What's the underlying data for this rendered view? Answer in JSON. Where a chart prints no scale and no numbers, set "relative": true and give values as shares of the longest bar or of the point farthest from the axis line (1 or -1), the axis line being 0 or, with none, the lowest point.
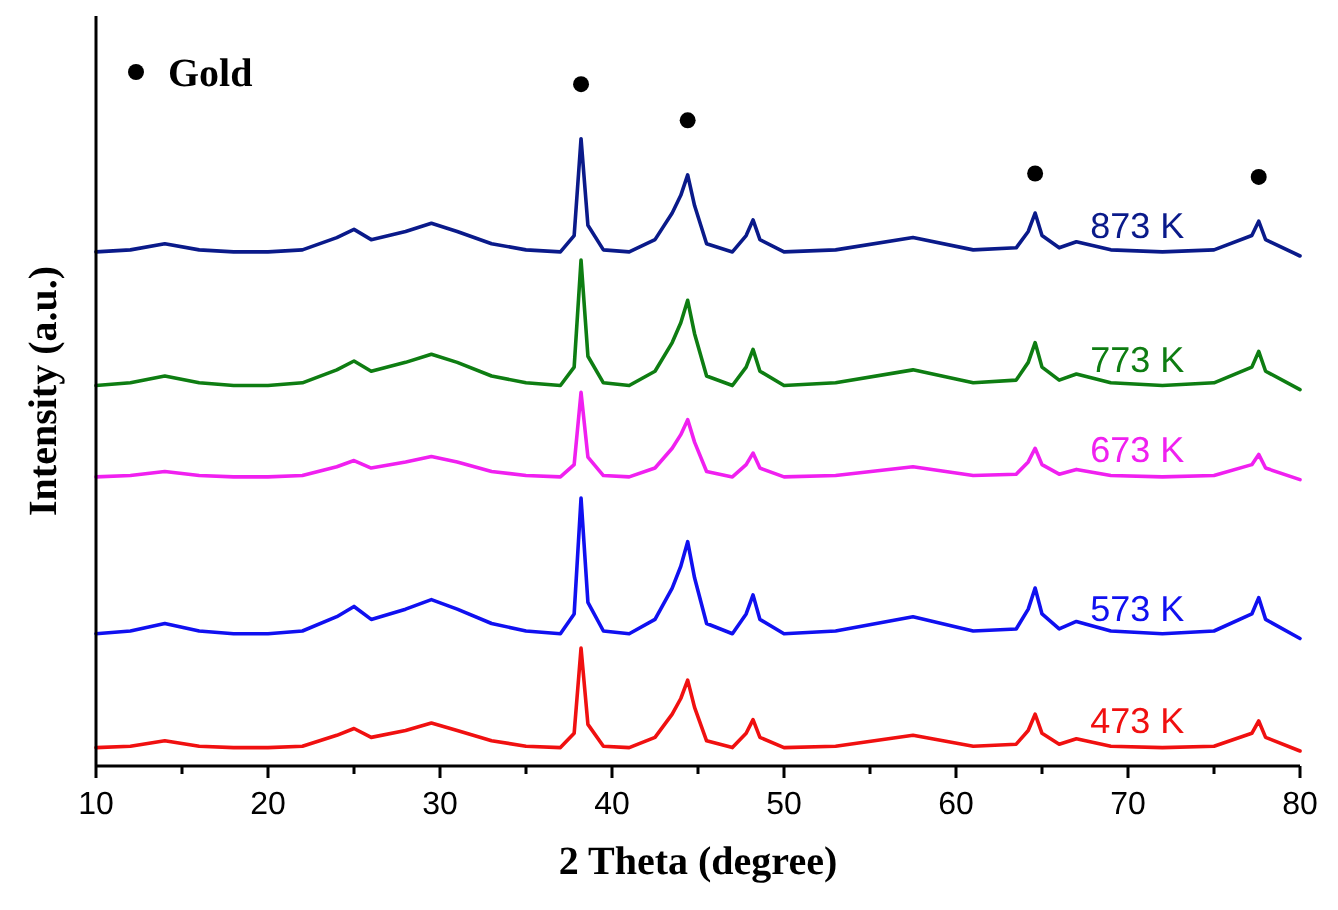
{
  "chart_data": {
    "type": "line",
    "relative": true,
    "xlabel": "2 Theta (degree)",
    "ylabel": "Intensity (a.u.)",
    "xlim": [
      10,
      80
    ],
    "xticks": [
      10,
      {
        "value": 15,
        "label": null
      },
      20,
      {
        "value": 25,
        "label": null
      },
      30,
      {
        "value": 35,
        "label": null
      },
      40,
      {
        "value": 45,
        "label": null
      },
      50,
      {
        "value": 55,
        "label": null
      },
      60,
      {
        "value": 65,
        "label": null
      },
      70,
      {
        "value": 75,
        "label": null
      },
      80
    ],
    "x": [
      10,
      12,
      14,
      16,
      18,
      20,
      22,
      24,
      25,
      26,
      28,
      29.5,
      31,
      33,
      35,
      37,
      37.8,
      38.2,
      38.6,
      39.5,
      41,
      42.5,
      43.5,
      44.0,
      44.4,
      44.8,
      45.5,
      47,
      47.8,
      48.2,
      48.6,
      50,
      53,
      57.5,
      61,
      63.5,
      64.2,
      64.6,
      65,
      66,
      67,
      69,
      72,
      75,
      77.2,
      77.6,
      78,
      80
    ],
    "grid": false,
    "legend": "top left",
    "series": [
      {
        "name": "873 K",
        "color": "#0a1a8a",
        "values": [
          0.754,
          0.757,
          0.766,
          0.757,
          0.754,
          0.754,
          0.757,
          0.775,
          0.787,
          0.772,
          0.784,
          0.796,
          0.784,
          0.766,
          0.757,
          0.754,
          0.778,
          0.92,
          0.793,
          0.757,
          0.754,
          0.772,
          0.811,
          0.837,
          0.867,
          0.822,
          0.766,
          0.754,
          0.778,
          0.801,
          0.772,
          0.754,
          0.757,
          0.775,
          0.757,
          0.76,
          0.784,
          0.811,
          0.778,
          0.76,
          0.769,
          0.757,
          0.754,
          0.757,
          0.778,
          0.799,
          0.772,
          0.748
        ]
      },
      {
        "name": "773 K",
        "color": "#0e7d12",
        "values": [
          0.558,
          0.562,
          0.572,
          0.562,
          0.558,
          0.558,
          0.562,
          0.581,
          0.594,
          0.579,
          0.592,
          0.604,
          0.592,
          0.572,
          0.562,
          0.558,
          0.585,
          0.742,
          0.601,
          0.562,
          0.558,
          0.579,
          0.621,
          0.65,
          0.683,
          0.634,
          0.572,
          0.558,
          0.585,
          0.611,
          0.579,
          0.558,
          0.562,
          0.581,
          0.562,
          0.566,
          0.592,
          0.621,
          0.585,
          0.566,
          0.575,
          0.562,
          0.558,
          0.562,
          0.585,
          0.608,
          0.579,
          0.552
        ]
      },
      {
        "name": "673 K",
        "color": "#f020f0",
        "values": [
          0.424,
          0.426,
          0.432,
          0.426,
          0.424,
          0.424,
          0.426,
          0.439,
          0.448,
          0.437,
          0.446,
          0.454,
          0.446,
          0.432,
          0.426,
          0.424,
          0.442,
          0.548,
          0.453,
          0.426,
          0.424,
          0.437,
          0.466,
          0.486,
          0.508,
          0.475,
          0.432,
          0.424,
          0.442,
          0.459,
          0.437,
          0.424,
          0.426,
          0.439,
          0.426,
          0.428,
          0.446,
          0.466,
          0.442,
          0.428,
          0.435,
          0.426,
          0.424,
          0.426,
          0.442,
          0.457,
          0.437,
          0.42
        ]
      },
      {
        "name": "573 K",
        "color": "#1010f0",
        "values": [
          0.194,
          0.198,
          0.209,
          0.198,
          0.194,
          0.194,
          0.198,
          0.219,
          0.234,
          0.215,
          0.23,
          0.244,
          0.23,
          0.209,
          0.198,
          0.194,
          0.223,
          0.393,
          0.24,
          0.198,
          0.194,
          0.215,
          0.261,
          0.293,
          0.329,
          0.276,
          0.209,
          0.194,
          0.223,
          0.251,
          0.215,
          0.194,
          0.198,
          0.219,
          0.198,
          0.201,
          0.23,
          0.261,
          0.223,
          0.201,
          0.212,
          0.198,
          0.194,
          0.198,
          0.223,
          0.247,
          0.215,
          0.187
        ]
      },
      {
        "name": "473 K",
        "color": "#f01010",
        "values": [
          0.027,
          0.029,
          0.037,
          0.029,
          0.027,
          0.027,
          0.029,
          0.045,
          0.055,
          0.042,
          0.052,
          0.063,
          0.052,
          0.037,
          0.029,
          0.027,
          0.048,
          0.173,
          0.061,
          0.029,
          0.027,
          0.042,
          0.076,
          0.099,
          0.126,
          0.086,
          0.037,
          0.027,
          0.048,
          0.068,
          0.042,
          0.027,
          0.029,
          0.045,
          0.029,
          0.032,
          0.052,
          0.076,
          0.048,
          0.032,
          0.04,
          0.029,
          0.027,
          0.029,
          0.048,
          0.066,
          0.042,
          0.022
        ]
      },
      {
        "name": "Gold",
        "type": "scatter",
        "marker": "circle",
        "color": "#000000",
        "x": [
          38.2,
          44.4,
          64.6,
          77.6
        ],
        "values": [
          1,
          0.947,
          0.869,
          0.864
        ]
      }
    ]
  }
}
